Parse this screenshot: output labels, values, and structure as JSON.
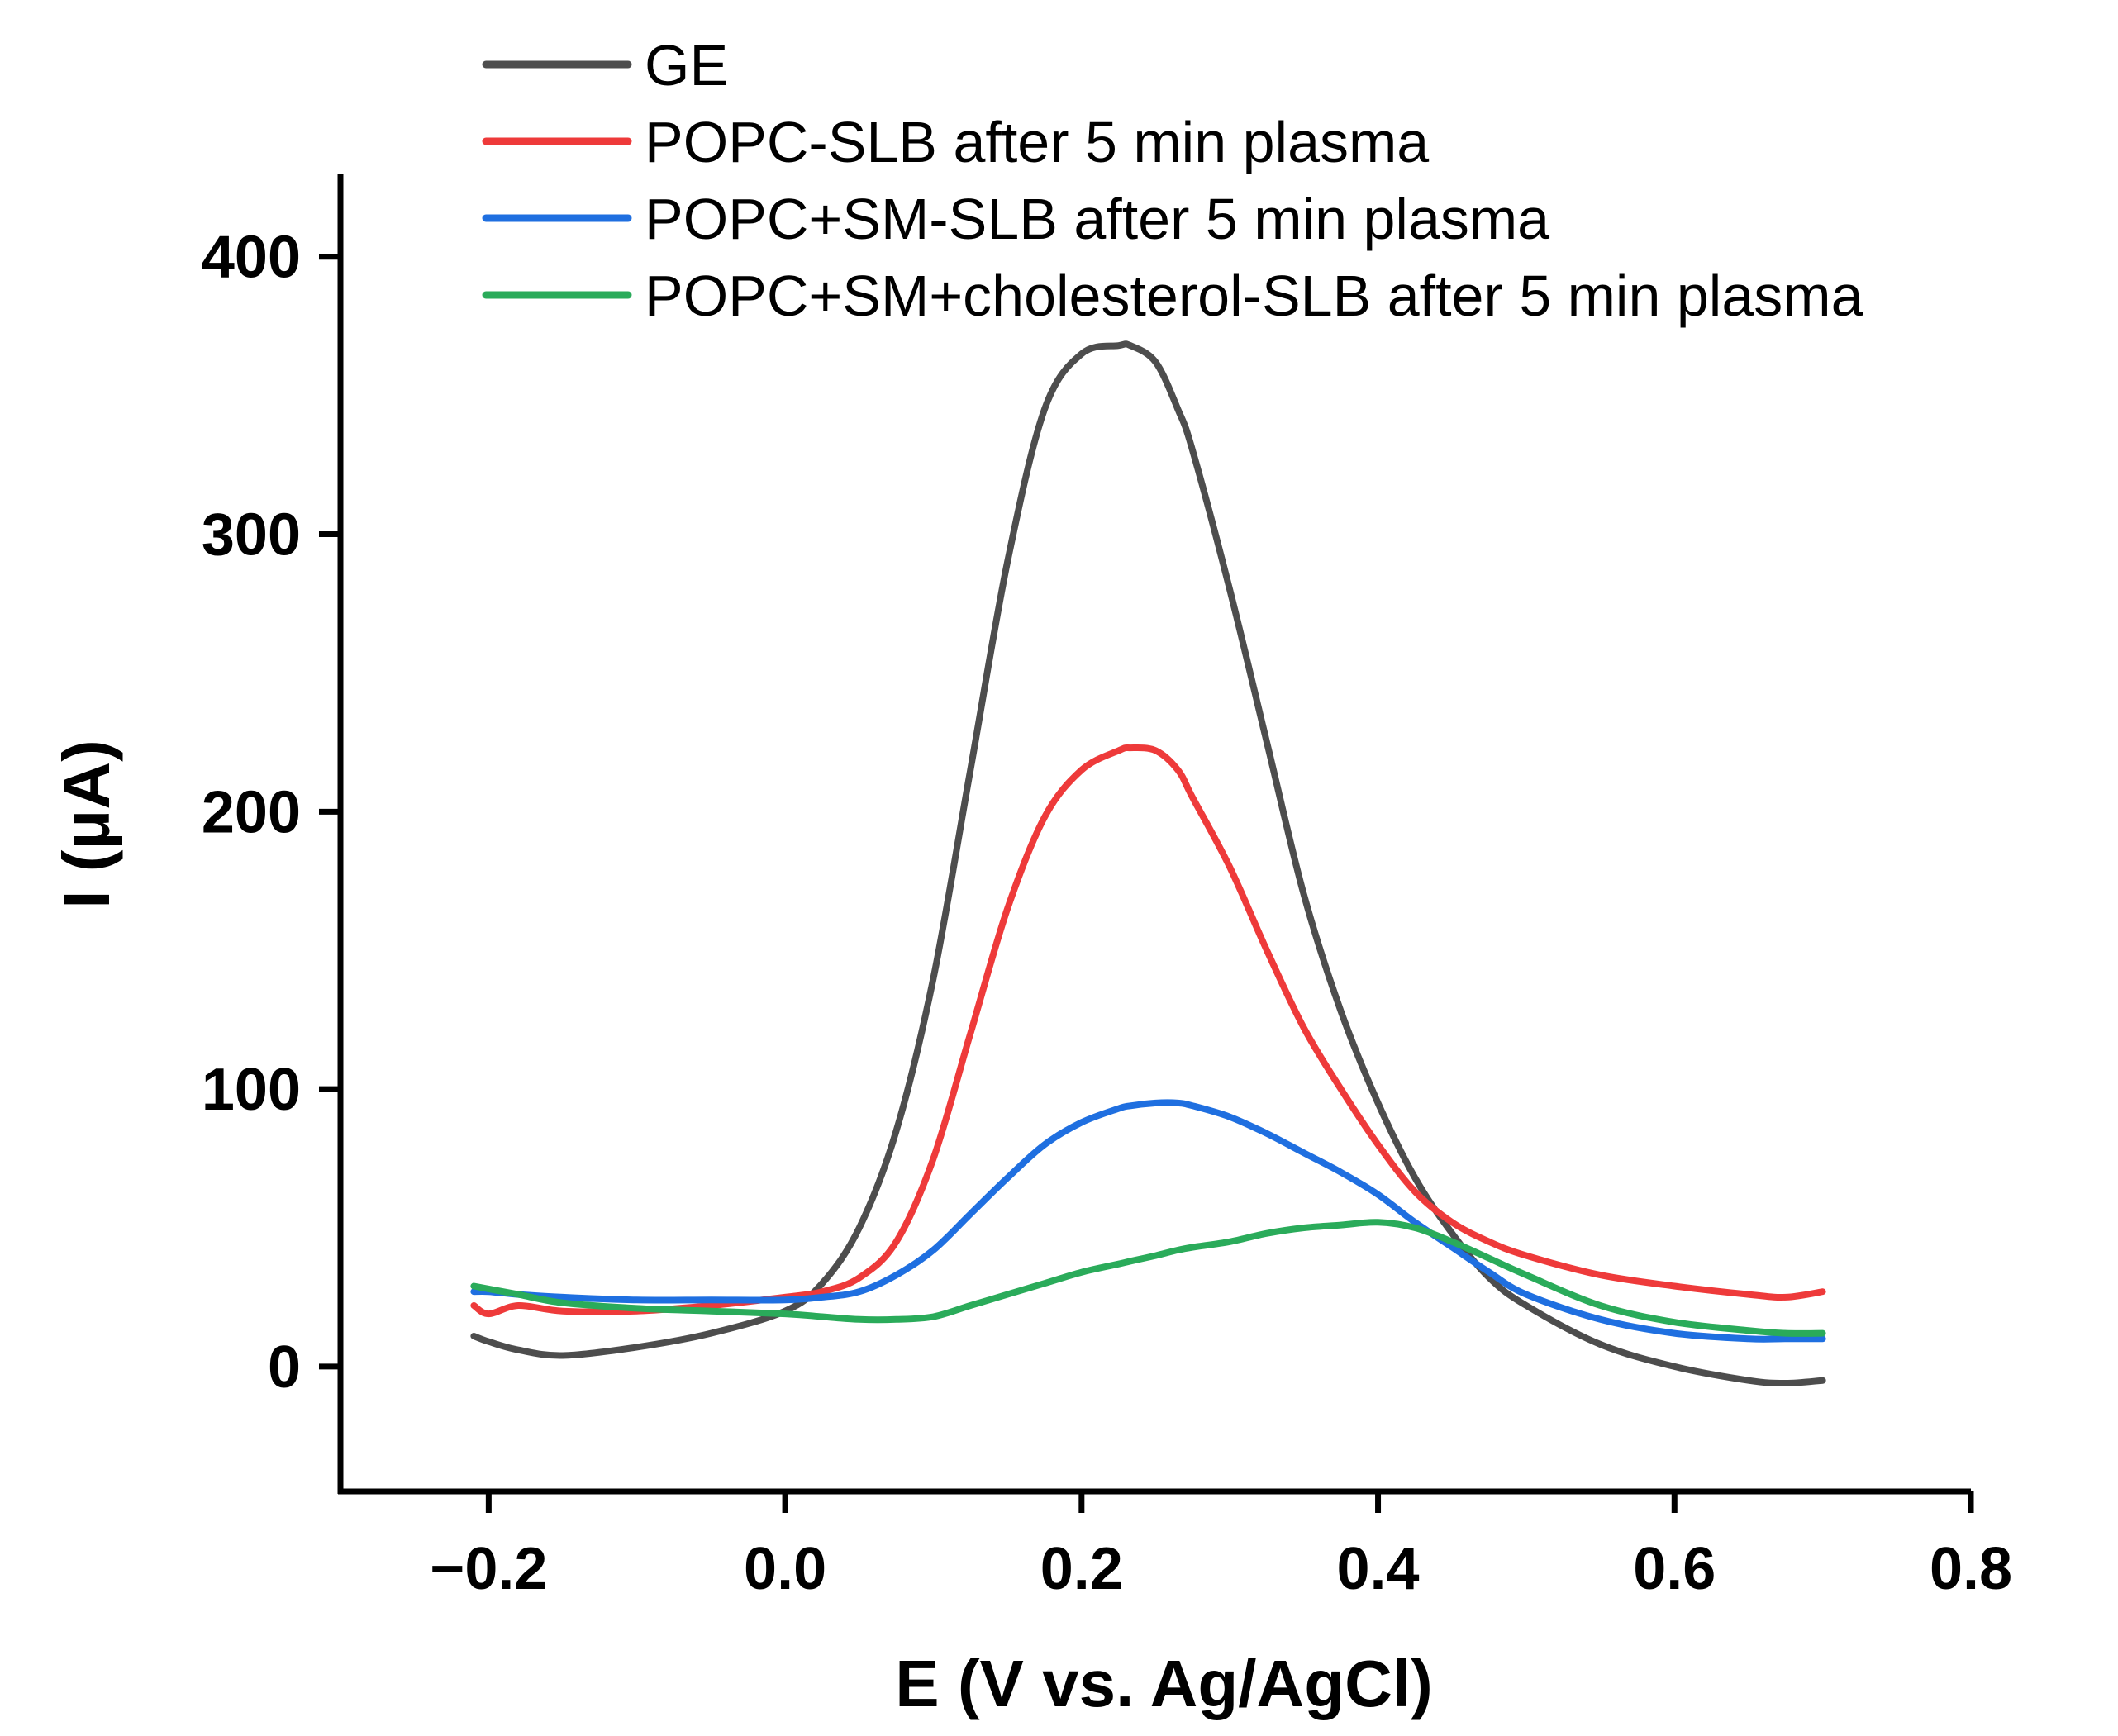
{
  "chart_data": {
    "type": "line",
    "title": "",
    "xlabel": "E (V vs. Ag/AgCl)",
    "ylabel": "I (μA)",
    "xlim": [
      -0.3,
      0.8
    ],
    "ylim": [
      -45,
      430
    ],
    "x_ticks": [
      -0.2,
      0.0,
      0.2,
      0.4,
      0.6,
      0.8
    ],
    "x_tick_labels": [
      "−0.2",
      "0.0",
      "0.2",
      "0.4",
      "0.6",
      "0.8"
    ],
    "y_ticks": [
      0,
      100,
      200,
      300,
      400
    ],
    "y_tick_labels": [
      "0",
      "100",
      "200",
      "300",
      "400"
    ],
    "legend_position": "top",
    "x": [
      -0.21,
      -0.2,
      -0.18,
      -0.15,
      -0.1,
      -0.05,
      0.0,
      0.025,
      0.05,
      0.075,
      0.1,
      0.125,
      0.15,
      0.175,
      0.2,
      0.225,
      0.233,
      0.25,
      0.265,
      0.275,
      0.3,
      0.325,
      0.35,
      0.375,
      0.4,
      0.425,
      0.45,
      0.475,
      0.5,
      0.55,
      0.6,
      0.65,
      0.675,
      0.7
    ],
    "series": [
      {
        "name": "GE",
        "color": "#4d4d4d",
        "values": [
          11,
          9,
          6,
          4,
          7,
          12,
          20,
          30,
          50,
          85,
          140,
          215,
          290,
          345,
          365,
          368,
          368,
          362,
          345,
          330,
          280,
          225,
          170,
          128,
          95,
          68,
          48,
          32,
          22,
          8,
          0,
          -5,
          -6,
          -5
        ]
      },
      {
        "name": "POPC-SLB after 5 min plasma",
        "color": "#ee3a3a",
        "values": [
          22,
          19,
          22,
          20,
          20,
          22,
          25,
          27,
          32,
          45,
          75,
          120,
          165,
          198,
          215,
          222,
          223,
          222,
          215,
          205,
          180,
          150,
          122,
          100,
          80,
          63,
          52,
          45,
          40,
          33,
          29,
          26,
          25,
          27
        ]
      },
      {
        "name": "POPC+SM-SLB after 5 min plasma",
        "color": "#1f6fe0",
        "values": [
          27,
          27,
          26,
          25,
          24,
          24,
          24,
          25,
          27,
          33,
          42,
          55,
          68,
          80,
          88,
          93,
          94,
          95,
          95,
          94,
          90,
          84,
          77,
          70,
          62,
          52,
          43,
          34,
          26,
          17,
          12,
          10,
          10,
          10
        ]
      },
      {
        "name": "POPC+SM+cholesterol-SLB after 5 min plasma",
        "color": "#2aab5a",
        "values": [
          29,
          28,
          26,
          23,
          21,
          20,
          19,
          18,
          17,
          17,
          18,
          22,
          26,
          30,
          34,
          37,
          38,
          40,
          42,
          43,
          45,
          48,
          50,
          51,
          52,
          50,
          45,
          39,
          33,
          22,
          16,
          13,
          12,
          12
        ]
      }
    ]
  }
}
